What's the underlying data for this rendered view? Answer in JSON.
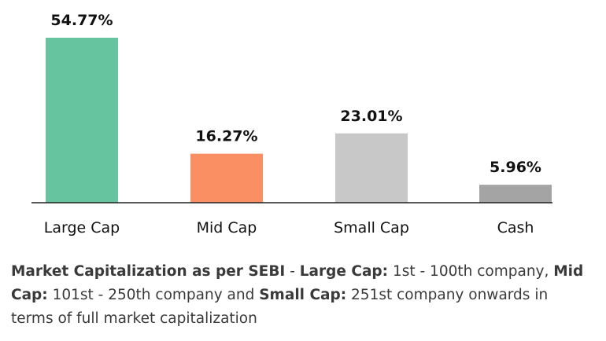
{
  "chart_data": {
    "type": "bar",
    "categories": [
      "Large Cap",
      "Mid Cap",
      "Small Cap",
      "Cash"
    ],
    "values": [
      54.77,
      16.27,
      23.01,
      5.96
    ],
    "value_labels": [
      "54.77%",
      "16.27%",
      "23.01%",
      "5.96%"
    ],
    "colors": [
      "#66c59f",
      "#f98f62",
      "#c8c8c8",
      "#a4a4a4"
    ],
    "ylim": [
      0,
      54.77
    ],
    "grid": false,
    "legend": "none"
  },
  "footnote": {
    "bold_1": "Market Capitalization as per SEBI",
    "text_1": " - ",
    "bold_2": "Large Cap:",
    "text_2": " 1st - 100th company, ",
    "bold_3": "Mid Cap:",
    "text_3": " 101st - 250th company and ",
    "bold_4": "Small Cap:",
    "text_4": " 251st company onwards in terms of full market capitalization"
  }
}
